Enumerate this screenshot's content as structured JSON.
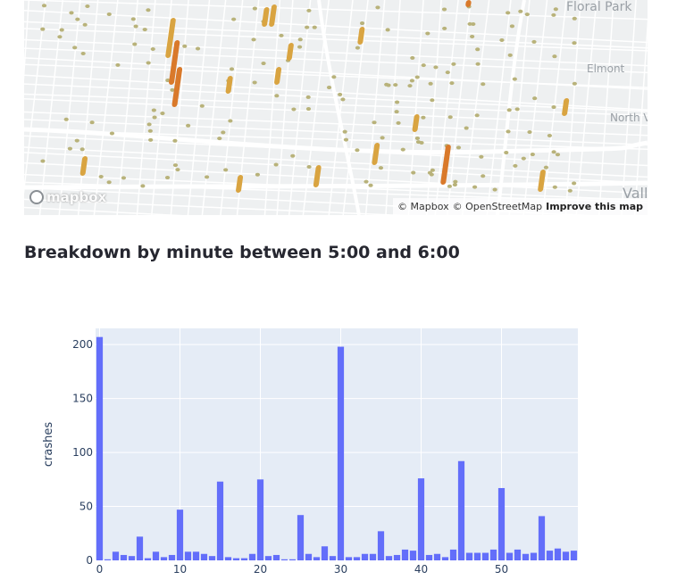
{
  "map": {
    "places": [
      {
        "label": "Floral Park"
      },
      {
        "label": "Elmont"
      },
      {
        "label": "North V"
      },
      {
        "label": "Vall"
      }
    ],
    "logo_text": "mapbox",
    "attribution": {
      "mapbox": "© Mapbox",
      "osm": "© OpenStreetMap",
      "improve": "Improve this map"
    },
    "colors": {
      "land": "#eef0f1",
      "road": "#ffffff",
      "dot": "#b8b27a",
      "column": "#d9a441",
      "column_hot": "#d9792a"
    }
  },
  "section": {
    "title": "Breakdown by minute between 5:00 and 6:00"
  },
  "chart_data": {
    "type": "bar",
    "title": "",
    "xlabel": "",
    "ylabel": "crashes",
    "x_ticks": [
      0,
      10,
      20,
      30,
      40,
      50
    ],
    "y_ticks": [
      0,
      50,
      100,
      150,
      200
    ],
    "ylim": [
      0,
      215
    ],
    "xlim": [
      -0.5,
      59.5
    ],
    "color": "#636efa",
    "plot_bg": "#e5ecf6",
    "grid": true,
    "categories": [
      0,
      1,
      2,
      3,
      4,
      5,
      6,
      7,
      8,
      9,
      10,
      11,
      12,
      13,
      14,
      15,
      16,
      17,
      18,
      19,
      20,
      21,
      22,
      23,
      24,
      25,
      26,
      27,
      28,
      29,
      30,
      31,
      32,
      33,
      34,
      35,
      36,
      37,
      38,
      39,
      40,
      41,
      42,
      43,
      44,
      45,
      46,
      47,
      48,
      49,
      50,
      51,
      52,
      53,
      54,
      55,
      56,
      57,
      58,
      59
    ],
    "values": [
      207,
      1,
      8,
      5,
      4,
      22,
      2,
      8,
      3,
      5,
      47,
      8,
      8,
      6,
      4,
      73,
      3,
      2,
      2,
      6,
      75,
      4,
      5,
      1,
      1,
      42,
      6,
      3,
      13,
      4,
      198,
      3,
      3,
      6,
      6,
      27,
      4,
      5,
      10,
      9,
      76,
      5,
      6,
      3,
      10,
      92,
      7,
      7,
      7,
      10,
      67,
      7,
      10,
      6,
      7,
      41,
      9,
      11,
      8,
      9
    ]
  }
}
